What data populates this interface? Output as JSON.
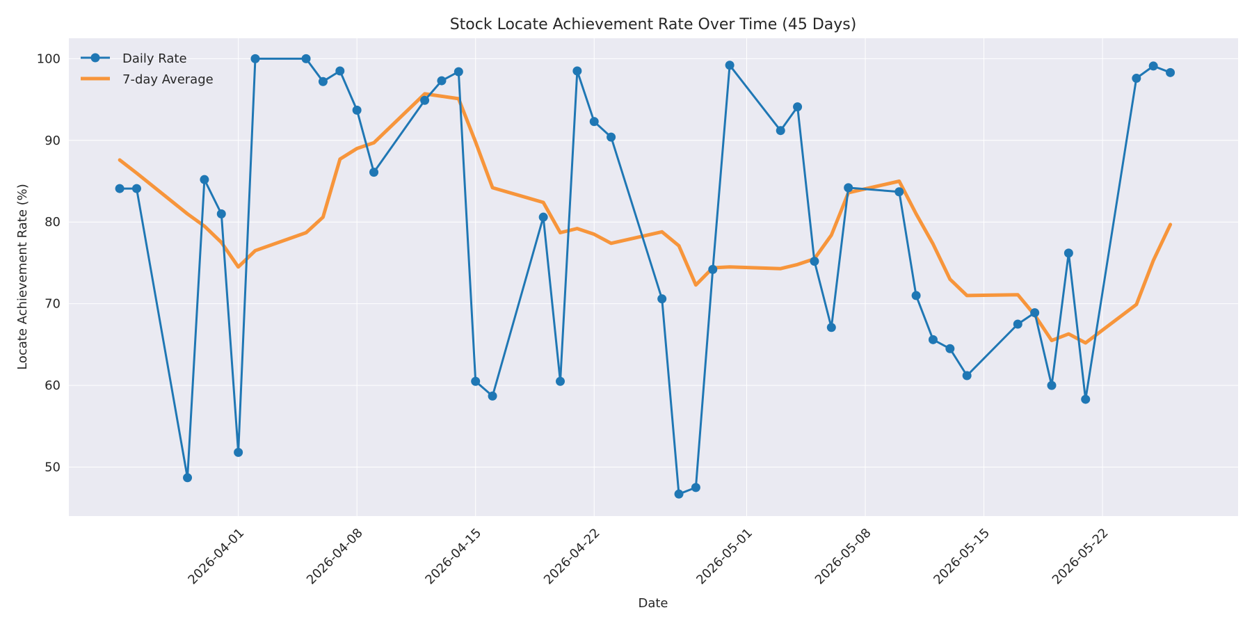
{
  "chart_data": {
    "type": "line",
    "title": "Stock Locate Achievement Rate Over Time (45 Days)",
    "xlabel": "Date",
    "ylabel": "Locate Achievement Rate (%)",
    "x_tick_labels": [
      "2026-04-01",
      "2026-04-08",
      "2026-04-15",
      "2026-04-22",
      "2026-05-01",
      "2026-05-08",
      "2026-05-15",
      "2026-05-22"
    ],
    "y_ticks": [
      50,
      60,
      70,
      80,
      90,
      100
    ],
    "xlim": [
      "2026-03-22",
      "2026-05-30"
    ],
    "ylim": [
      44,
      102.5
    ],
    "grid": true,
    "legend": "top-left",
    "colors": {
      "daily": "#1f77b4",
      "avg": "#f7953b",
      "plot_bg": "#eaeaf2"
    },
    "series": [
      {
        "name": "Daily Rate",
        "style": "line-marker",
        "x": [
          "2026-03-25",
          "2026-03-26",
          "2026-03-29",
          "2026-03-30",
          "2026-03-31",
          "2026-04-01",
          "2026-04-02",
          "2026-04-05",
          "2026-04-06",
          "2026-04-07",
          "2026-04-08",
          "2026-04-09",
          "2026-04-12",
          "2026-04-13",
          "2026-04-14",
          "2026-04-15",
          "2026-04-16",
          "2026-04-19",
          "2026-04-20",
          "2026-04-21",
          "2026-04-22",
          "2026-04-23",
          "2026-04-26",
          "2026-04-27",
          "2026-04-28",
          "2026-04-29",
          "2026-04-30",
          "2026-05-03",
          "2026-05-04",
          "2026-05-05",
          "2026-05-06",
          "2026-05-07",
          "2026-05-10",
          "2026-05-11",
          "2026-05-12",
          "2026-05-13",
          "2026-05-14",
          "2026-05-17",
          "2026-05-18",
          "2026-05-19",
          "2026-05-20",
          "2026-05-21",
          "2026-05-24",
          "2026-05-25",
          "2026-05-26"
        ],
        "values": [
          84.1,
          84.1,
          48.7,
          85.2,
          81.0,
          51.8,
          100.0,
          100.0,
          97.2,
          98.5,
          93.7,
          86.1,
          94.9,
          97.3,
          98.4,
          60.5,
          58.7,
          80.6,
          60.5,
          98.5,
          92.3,
          90.4,
          70.6,
          46.7,
          47.5,
          74.2,
          99.2,
          91.2,
          94.1,
          75.2,
          67.1,
          84.2,
          83.7,
          71.0,
          65.6,
          64.5,
          61.2,
          67.5,
          68.9,
          60.0,
          76.2,
          58.3,
          97.6,
          99.1,
          98.3
        ]
      },
      {
        "name": "7-day Average",
        "style": "line",
        "x": [
          "2026-03-25",
          "2026-03-26",
          "2026-03-29",
          "2026-03-30",
          "2026-03-31",
          "2026-04-01",
          "2026-04-02",
          "2026-04-05",
          "2026-04-06",
          "2026-04-07",
          "2026-04-08",
          "2026-04-09",
          "2026-04-12",
          "2026-04-13",
          "2026-04-14",
          "2026-04-15",
          "2026-04-16",
          "2026-04-19",
          "2026-04-20",
          "2026-04-21",
          "2026-04-22",
          "2026-04-23",
          "2026-04-26",
          "2026-04-27",
          "2026-04-28",
          "2026-04-29",
          "2026-04-30",
          "2026-05-03",
          "2026-05-04",
          "2026-05-05",
          "2026-05-06",
          "2026-05-07",
          "2026-05-10",
          "2026-05-11",
          "2026-05-12",
          "2026-05-13",
          "2026-05-14",
          "2026-05-17",
          "2026-05-18",
          "2026-05-19",
          "2026-05-20",
          "2026-05-21",
          "2026-05-24",
          "2026-05-25",
          "2026-05-26"
        ],
        "values": [
          87.6,
          86.0,
          81.0,
          79.5,
          77.5,
          74.5,
          76.5,
          78.7,
          80.6,
          87.7,
          89.0,
          89.7,
          95.7,
          95.4,
          95.1,
          89.8,
          84.2,
          82.4,
          78.7,
          79.2,
          78.5,
          77.4,
          78.8,
          77.1,
          72.3,
          74.4,
          74.5,
          74.3,
          74.8,
          75.5,
          78.4,
          83.6,
          85.0,
          81.0,
          77.3,
          73.0,
          71.0,
          71.1,
          68.6,
          65.5,
          66.3,
          65.2,
          69.9,
          75.3,
          79.7
        ]
      }
    ]
  }
}
